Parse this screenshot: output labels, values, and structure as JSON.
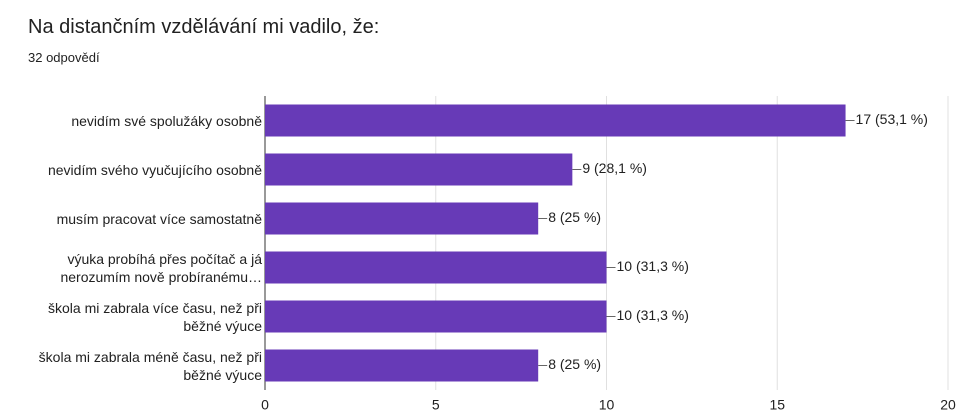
{
  "chart_data": {
    "type": "bar",
    "orientation": "horizontal",
    "title": "Na distančním vzdělávání mi vadilo, že:",
    "subtitle": "32 odpovědí",
    "categories": [
      "nevidím své spolužáky osobně",
      "nevidím svého vyučujícího osobně",
      "musím pracovat více samostatně",
      "výuka probíhá přes počítač a já nerozumím nově probíranému…",
      "škola mi zabrala více času, než při běžné výuce",
      "škola mi zabrala méně času, než při běžné výuce"
    ],
    "values": [
      17,
      9,
      8,
      10,
      10,
      8
    ],
    "value_labels": [
      "17 (53,1 %)",
      "9 (28,1 %)",
      "8 (25 %)",
      "10 (31,3 %)",
      "10 (31,3 %)",
      "8 (25 %)"
    ],
    "color": "#673ab7",
    "xlim": [
      0,
      20
    ],
    "xticks": [
      0,
      5,
      10,
      15,
      20
    ],
    "grid": true
  }
}
